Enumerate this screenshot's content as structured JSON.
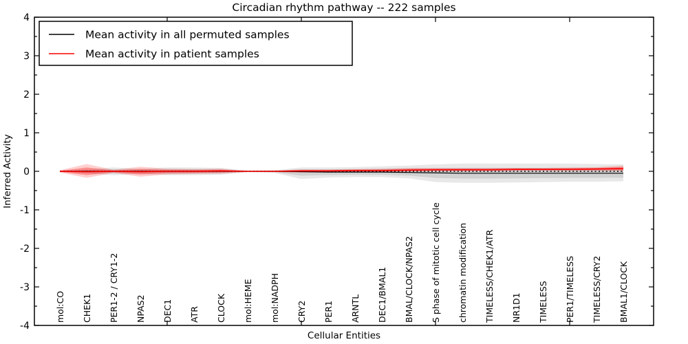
{
  "chart_data": {
    "type": "line",
    "title": "Circadian rhythm pathway -- 222 samples",
    "xlabel": "Cellular Entities",
    "ylabel": "Inferred Activity",
    "ylim": [
      -4,
      4
    ],
    "yticks": [
      -4,
      -3,
      -2,
      -1,
      0,
      1,
      2,
      3,
      4
    ],
    "y_minor_tick_step": 0.5,
    "grid": false,
    "legend_position": "upper left",
    "zero_line": {
      "y": 0,
      "style": "dotted",
      "color": "#000000"
    },
    "categories": [
      "mol:CO",
      "CHEK1",
      "PER1-2 / CRY1-2",
      "NPAS2",
      "DEC1",
      "ATR",
      "CLOCK",
      "mol:HEME",
      "mol:NADPH",
      "CRY2",
      "PER1",
      "ARNTL",
      "DEC1/BMAL1",
      "BMAL/CLOCK/NPAS2",
      "S phase of mitotic cell cycle",
      "chromatin modification",
      "TIMELESS/CHEK1/ATR",
      "NR1D1",
      "TIMELESS",
      "PER1/TIMELESS",
      "TIMELESS/CRY2",
      "BMAL1/CLOCK"
    ],
    "series": [
      {
        "name": "Mean activity in all permuted samples",
        "color": "#000000",
        "band_color": "#808080",
        "values": [
          0,
          0,
          0,
          0,
          0,
          0,
          0,
          0,
          0,
          -0.01,
          -0.02,
          -0.02,
          -0.02,
          -0.03,
          -0.04,
          -0.05,
          -0.05,
          -0.05,
          -0.05,
          -0.05,
          -0.05,
          -0.05
        ],
        "band_upper": [
          0.02,
          0.06,
          0.1,
          0.07,
          0.1,
          0.1,
          0.09,
          0.02,
          0.03,
          0.1,
          0.1,
          0.11,
          0.13,
          0.15,
          0.18,
          0.2,
          0.2,
          0.2,
          0.2,
          0.2,
          0.19,
          0.18
        ],
        "band_lower": [
          -0.02,
          -0.06,
          -0.1,
          -0.07,
          -0.1,
          -0.1,
          -0.09,
          -0.02,
          -0.04,
          -0.2,
          -0.16,
          -0.15,
          -0.15,
          -0.18,
          -0.28,
          -0.3,
          -0.3,
          -0.29,
          -0.28,
          -0.27,
          -0.27,
          -0.26
        ]
      },
      {
        "name": "Mean activity in patient samples",
        "color": "#ff0000",
        "band_color": "#ff0000",
        "values": [
          0,
          -0.01,
          0,
          -0.01,
          0,
          0,
          0.01,
          0,
          0,
          0.01,
          0.01,
          0.02,
          0.02,
          0.03,
          0.04,
          0.04,
          0.04,
          0.05,
          0.05,
          0.05,
          0.06,
          0.07
        ],
        "band_upper": [
          0.03,
          0.19,
          0.04,
          0.12,
          0.07,
          0.06,
          0.07,
          0.01,
          0.02,
          0.05,
          0.05,
          0.06,
          0.07,
          0.09,
          0.09,
          0.09,
          0.09,
          0.09,
          0.09,
          0.1,
          0.11,
          0.15
        ],
        "band_lower": [
          -0.03,
          -0.17,
          -0.04,
          -0.14,
          -0.08,
          -0.07,
          -0.06,
          -0.02,
          -0.02,
          -0.04,
          -0.03,
          -0.02,
          -0.02,
          -0.01,
          0,
          0,
          0,
          0.01,
          0.01,
          0.01,
          0.01,
          0
        ]
      }
    ]
  }
}
